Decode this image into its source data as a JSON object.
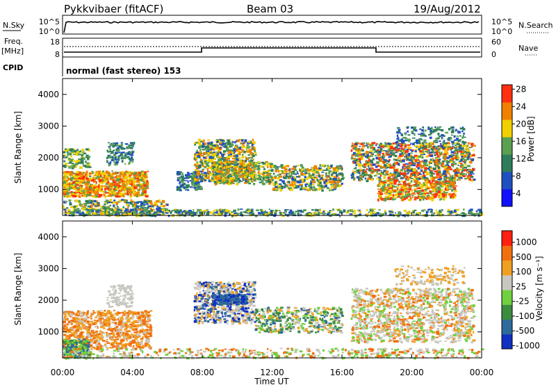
{
  "header": {
    "station": "Pykkvibaer (fitACF)",
    "beam": "Beam 03",
    "date": "19/Aug/2012"
  },
  "top_panels": {
    "nsky_label": "N.Sky",
    "nsky_ticks": [
      "10^5",
      "10^0"
    ],
    "nsearch_label": "N.Search",
    "nsearch_ticks": [
      "10^5",
      "10^0"
    ],
    "freq_label": "Freq.",
    "freq_unit": "[MHz]",
    "freq_ticks": [
      "18",
      "8"
    ],
    "nave_label": "Nave",
    "nave_ticks": [
      "60",
      "0"
    ],
    "cpid_label": "CPID",
    "cpid_text": "normal (fast stereo) 153"
  },
  "chart_data": [
    {
      "type": "heatmap",
      "name_printed": "",
      "ylabel": "Slant Range [km]",
      "ylim": [
        180,
        4500
      ],
      "yticks": [
        "1000",
        "2000",
        "3000",
        "4000"
      ],
      "xlim": [
        0,
        24
      ],
      "colorbar": {
        "label": "Power [dB]",
        "ticks": [
          "4",
          "8",
          "12",
          "16",
          "20",
          "24",
          "28"
        ],
        "colors": [
          "#1010ff",
          "#2050c0",
          "#2e7d5a",
          "#5aa050",
          "#f0d000",
          "#f08000",
          "#ff3010"
        ]
      }
    },
    {
      "type": "heatmap",
      "ylabel": "Slant Range [km]",
      "ylim": [
        180,
        4500
      ],
      "yticks": [
        "1000",
        "2000",
        "3000",
        "4000"
      ],
      "xlim": [
        0,
        24
      ],
      "colorbar": {
        "label": "Velocity [m s⁻¹]",
        "ticks": [
          "1000",
          "500",
          "100",
          "25",
          "-25",
          "-100",
          "-500",
          "-1000"
        ],
        "colors": [
          "#1030c0",
          "#2e6a9a",
          "#3c8c40",
          "#70d040",
          "#c8c8c0",
          "#f0a020",
          "#f07010",
          "#ff2010"
        ]
      }
    }
  ],
  "x_axis": {
    "ticks": [
      "00:00",
      "04:00",
      "08:00",
      "12:00",
      "16:00",
      "20:00",
      "00:00"
    ],
    "label": "Time UT"
  }
}
